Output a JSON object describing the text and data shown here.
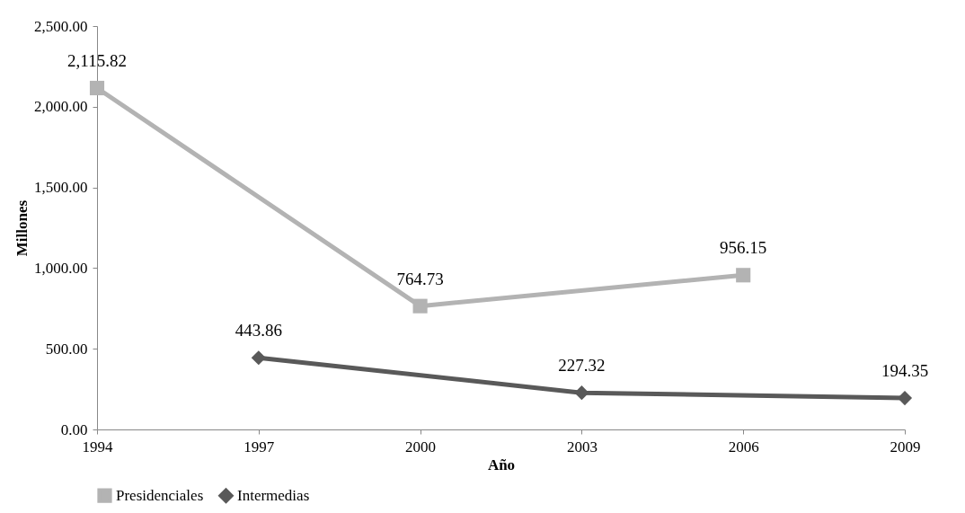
{
  "chart_data": {
    "type": "line",
    "xlabel": "Año",
    "ylabel": "Millones",
    "xlim": [
      1994,
      2009
    ],
    "xticks": [
      1994,
      1997,
      2000,
      2003,
      2006,
      2009
    ],
    "ylim": [
      0,
      2500
    ],
    "yticks": [
      {
        "value": 0,
        "label": "0.00"
      },
      {
        "value": 500,
        "label": "500.00"
      },
      {
        "value": 1000,
        "label": "1,000.00"
      },
      {
        "value": 1500,
        "label": "1,500.00"
      },
      {
        "value": 2000,
        "label": "2,000.00"
      },
      {
        "value": 2500,
        "label": "2,500.00"
      }
    ],
    "grid": false,
    "legend": "bottom",
    "line_style": "solid",
    "series": [
      {
        "name": "Presidenciales",
        "color": "#b3b3b3",
        "marker": "square",
        "x": [
          1994,
          2000,
          2006
        ],
        "values": [
          2115.82,
          764.73,
          956.15
        ],
        "value_labels": [
          "2,115.82",
          "764.73",
          "956.15"
        ]
      },
      {
        "name": "Intermedias",
        "color": "#595959",
        "marker": "diamond",
        "x": [
          1997,
          2003,
          2009
        ],
        "values": [
          443.86,
          227.32,
          194.35
        ],
        "value_labels": [
          "443.86",
          "227.32",
          "194.35"
        ]
      }
    ]
  }
}
